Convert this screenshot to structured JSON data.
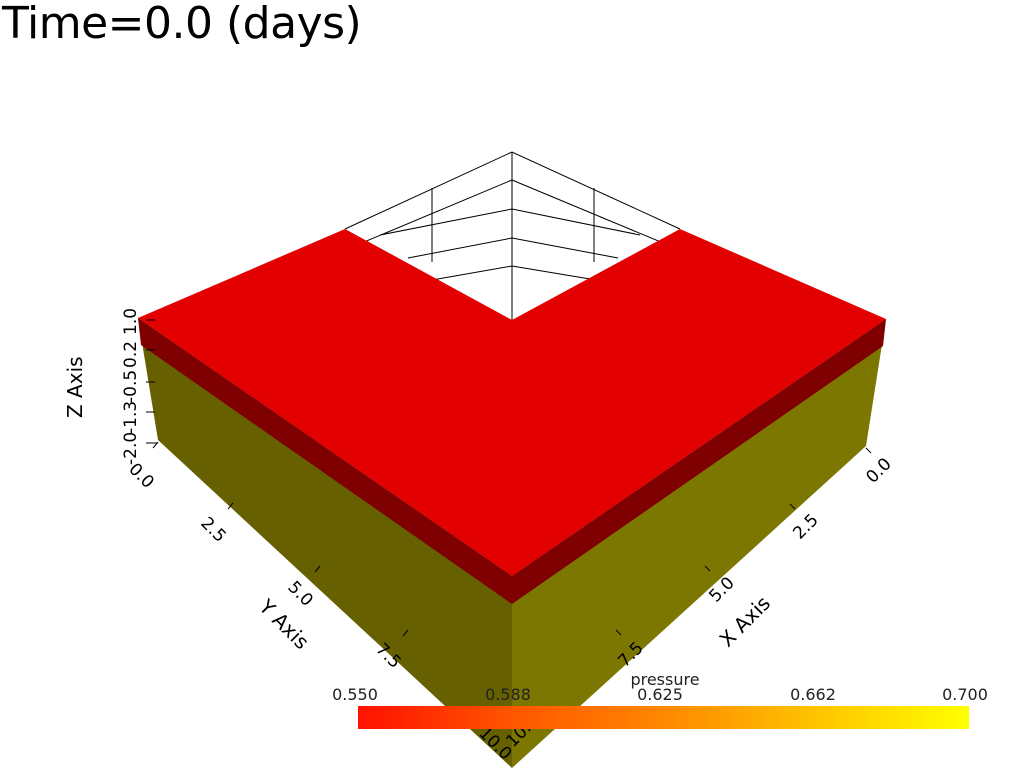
{
  "title": "Time=0.0 (days)",
  "axes": {
    "x": {
      "label": "X Axis",
      "ticks": [
        "0.0",
        "2.5",
        "5.0",
        "7.5",
        "10.0"
      ]
    },
    "y": {
      "label": "Y Axis",
      "ticks": [
        "0.0",
        "2.5",
        "5.0",
        "7.5",
        "10.0"
      ]
    },
    "z": {
      "label": "Z Axis",
      "ticks": [
        "-2.0",
        "-1.3",
        "-0.5",
        "0.2",
        "1.0"
      ]
    }
  },
  "colorbar": {
    "title": "pressure",
    "ticks": [
      "0.550",
      "0.588",
      "0.625",
      "0.662",
      "0.700"
    ],
    "colors": [
      "#ff1100",
      "#ff5500",
      "#ff8800",
      "#ffc400",
      "#ffff00"
    ]
  },
  "colors": {
    "top_face": "#e30000",
    "dark_band": "#7e0000",
    "left_face": "#666000",
    "right_face": "#7c7700"
  }
}
